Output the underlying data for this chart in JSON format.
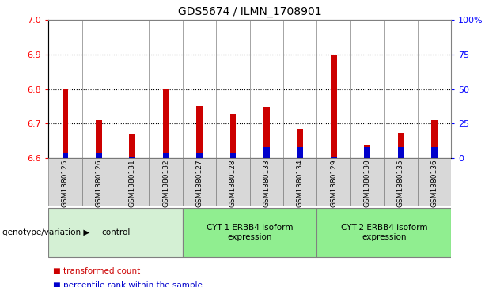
{
  "title": "GDS5674 / ILMN_1708901",
  "samples": [
    "GSM1380125",
    "GSM1380126",
    "GSM1380131",
    "GSM1380132",
    "GSM1380127",
    "GSM1380128",
    "GSM1380133",
    "GSM1380134",
    "GSM1380129",
    "GSM1380130",
    "GSM1380135",
    "GSM1380136"
  ],
  "red_values": [
    6.8,
    6.71,
    6.668,
    6.8,
    6.75,
    6.728,
    6.748,
    6.685,
    6.9,
    6.635,
    6.672,
    6.71
  ],
  "blue_percentiles": [
    3,
    4,
    1,
    4,
    4,
    4,
    8,
    8,
    1,
    8,
    8,
    8
  ],
  "bar_bottom": 6.6,
  "ylim_left": [
    6.6,
    7.0
  ],
  "ylim_right": [
    0,
    100
  ],
  "yticks_left": [
    6.6,
    6.7,
    6.8,
    6.9,
    7.0
  ],
  "yticks_right": [
    0,
    25,
    50,
    75,
    100
  ],
  "ytick_labels_right": [
    "0",
    "25",
    "50",
    "75",
    "100%"
  ],
  "gridlines": [
    6.7,
    6.8,
    6.9
  ],
  "groups": [
    {
      "label": "control",
      "start": 0,
      "end": 4,
      "color": "#d4f0d4"
    },
    {
      "label": "CYT-1 ERBB4 isoform\nexpression",
      "start": 4,
      "end": 8,
      "color": "#90ee90"
    },
    {
      "label": "CYT-2 ERBB4 isoform\nexpression",
      "start": 8,
      "end": 12,
      "color": "#90ee90"
    }
  ],
  "genotype_label": "genotype/variation",
  "legend_red": "transformed count",
  "legend_blue": "percentile rank within the sample",
  "bar_width": 0.18,
  "red_color": "#cc0000",
  "blue_color": "#0000cc",
  "xticklabel_bg": "#d8d8d8",
  "plot_bg_color": "#ffffff",
  "bar_border_color": "#888888"
}
